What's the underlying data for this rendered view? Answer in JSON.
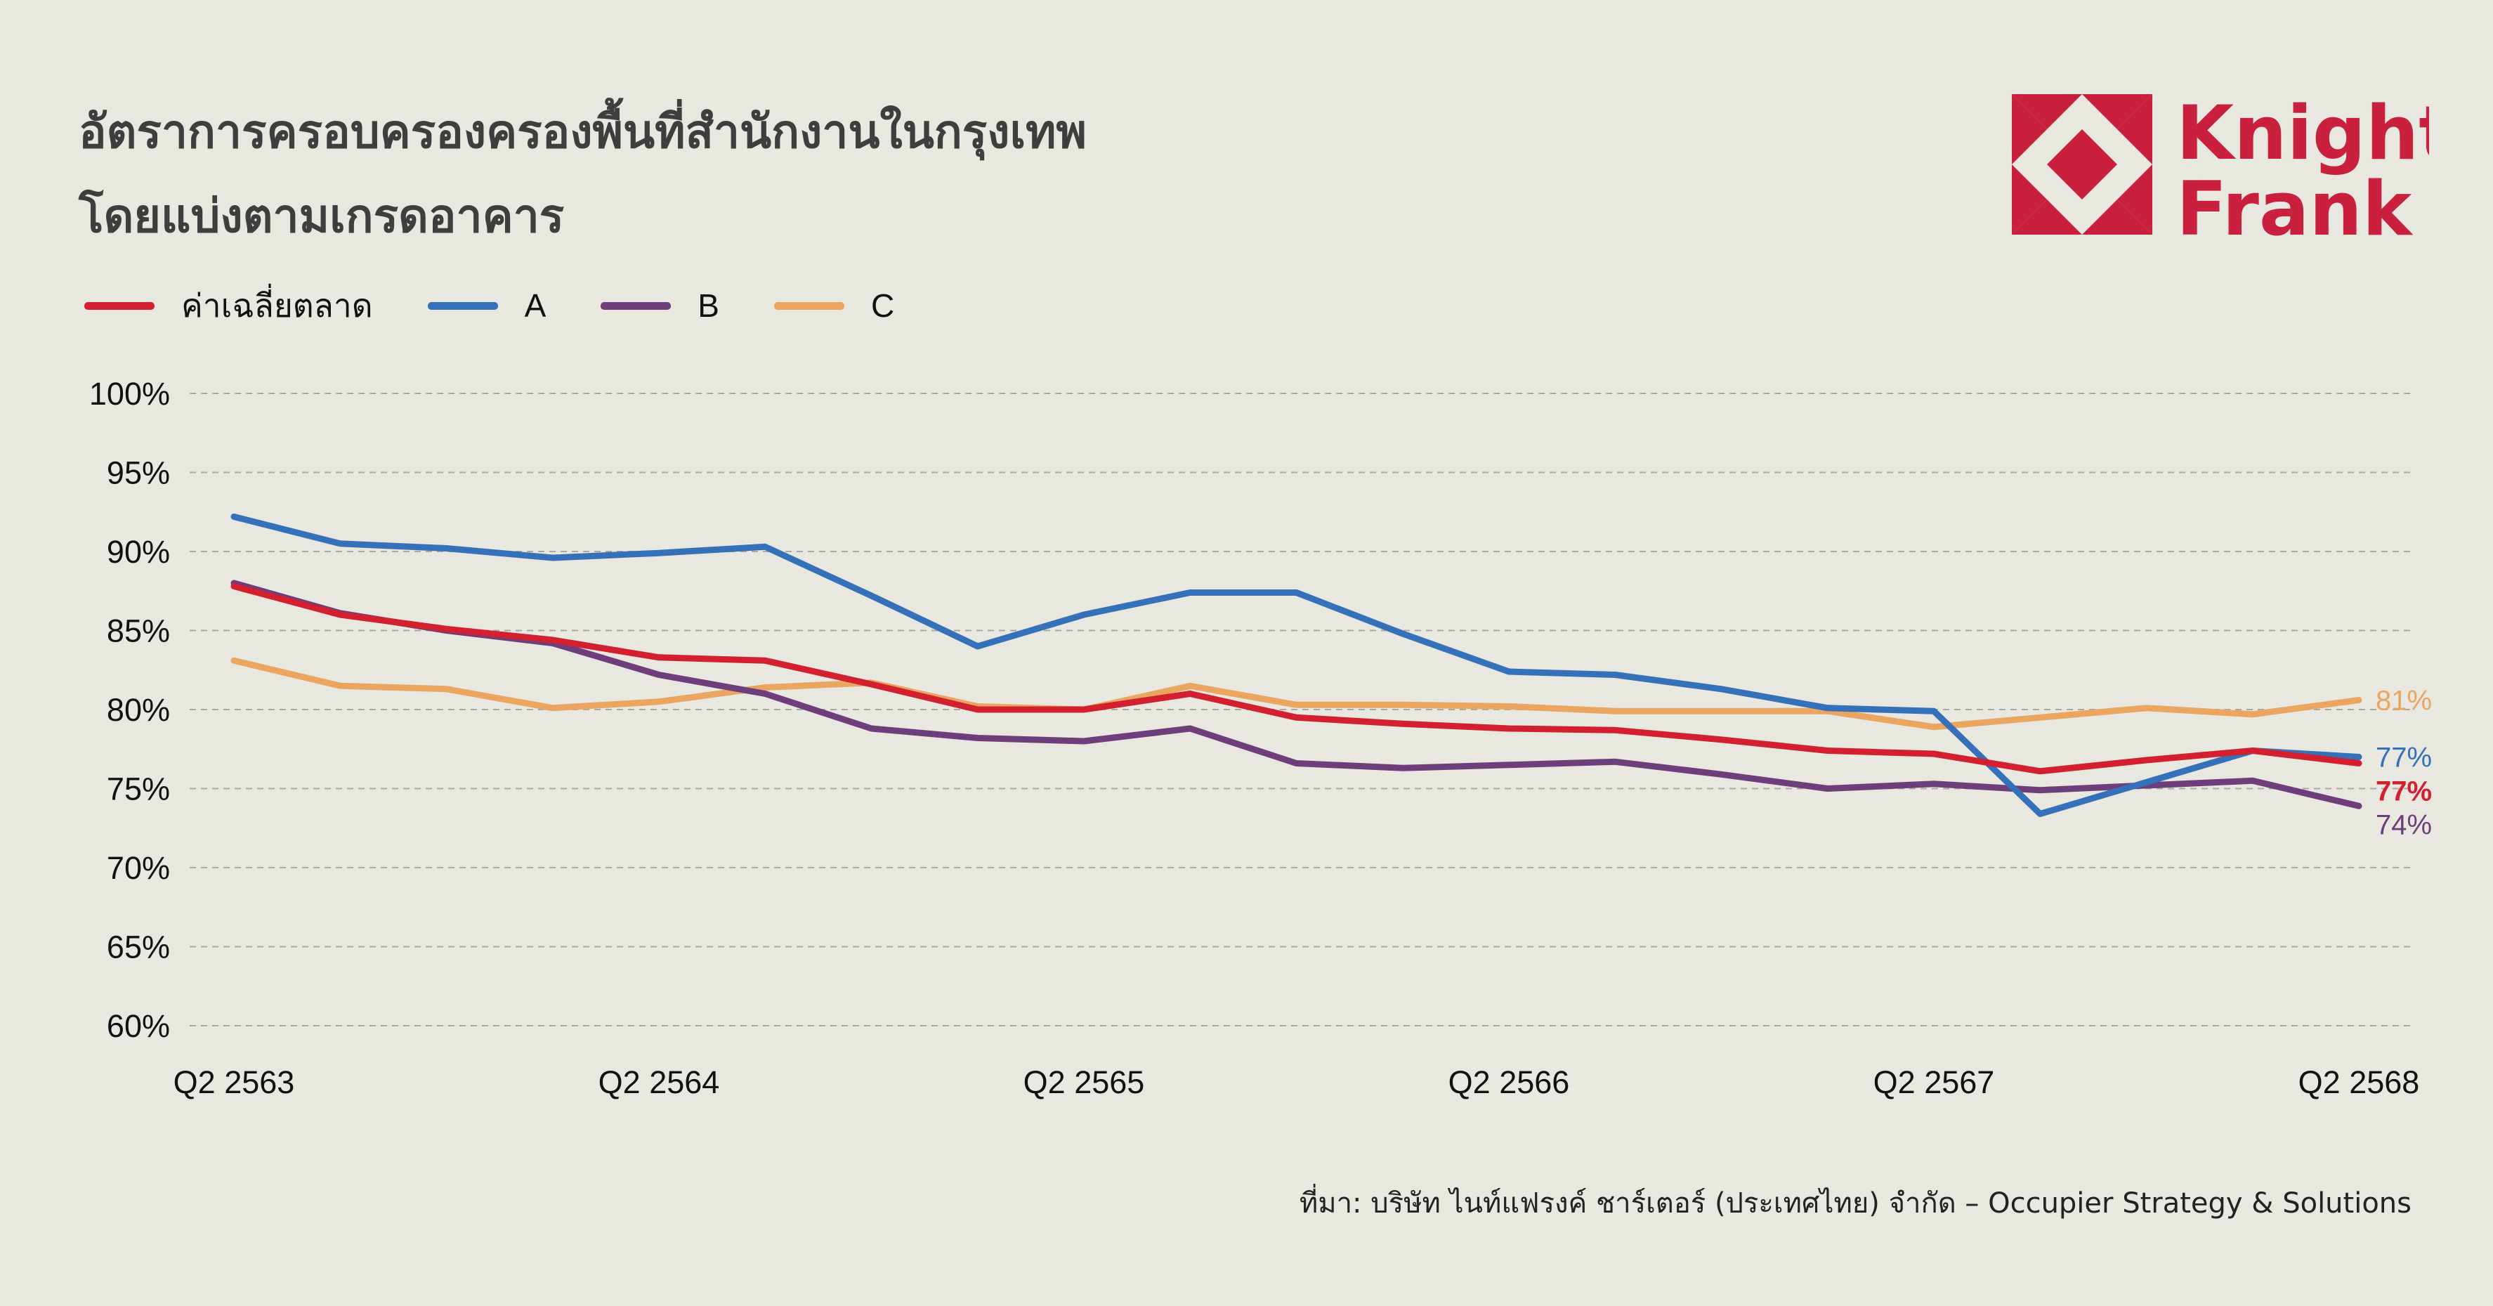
{
  "title": {
    "line1": "อัตราการครอบครองครองพื้นที่สำนักงานในกรุงเทพ",
    "line2": "โดยแบ่งตามเกรดอาคาร"
  },
  "logo": {
    "line1": "Knight",
    "line2": "Frank",
    "color": "#C8203D"
  },
  "source": "ที่มา: บริษัท ไนท์แฟรงค์ ชาร์เตอร์ (ประเทศไทย) จำกัด – Occupier Strategy & Solutions",
  "chart_data": {
    "type": "line",
    "x": [
      "Q2 2563",
      "Q3 2563",
      "Q4 2563",
      "Q1 2564",
      "Q2 2564",
      "Q3 2564",
      "Q4 2564",
      "Q1 2565",
      "Q2 2565",
      "Q3 2565",
      "Q4 2565",
      "Q1 2566",
      "Q2 2566",
      "Q3 2566",
      "Q4 2566",
      "Q1 2567",
      "Q2 2567",
      "Q3 2567",
      "Q4 2567",
      "Q1 2568",
      "Q2 2568"
    ],
    "x_tick_labels": [
      "Q2 2563",
      "Q2 2564",
      "Q2 2565",
      "Q2 2566",
      "Q2 2567",
      "Q2 2568"
    ],
    "y_tick_labels": [
      "60%",
      "65%",
      "70%",
      "75%",
      "80%",
      "85%",
      "90%",
      "95%",
      "100%"
    ],
    "ylim": [
      60,
      100
    ],
    "grid": true,
    "legend_position": "top-left",
    "series": [
      {
        "name": "ค่าเฉลี่ยตลาด",
        "color": "#D3202F",
        "end_label": "77%",
        "end_label_bold": true,
        "values": [
          87.8,
          86.0,
          85.1,
          84.4,
          83.3,
          83.1,
          81.6,
          80.0,
          80.0,
          81.0,
          79.5,
          79.1,
          78.8,
          78.7,
          78.1,
          77.4,
          77.2,
          76.1,
          76.8,
          77.4,
          76.6
        ]
      },
      {
        "name": "A",
        "color": "#3471B8",
        "end_label": "77%",
        "end_label_bold": false,
        "values": [
          92.2,
          90.5,
          90.2,
          89.6,
          89.9,
          90.3,
          87.2,
          84.0,
          86.0,
          87.4,
          87.4,
          84.8,
          82.4,
          82.2,
          81.3,
          80.1,
          79.9,
          73.4,
          75.4,
          77.4,
          77.0
        ]
      },
      {
        "name": "B",
        "color": "#6E3E7B",
        "end_label": "74%",
        "end_label_bold": false,
        "values": [
          88.0,
          86.1,
          85.0,
          84.2,
          82.2,
          81.0,
          78.8,
          78.2,
          78.0,
          78.8,
          76.6,
          76.3,
          76.5,
          76.7,
          75.9,
          75.0,
          75.3,
          74.9,
          75.2,
          75.5,
          73.9
        ]
      },
      {
        "name": "C",
        "color": "#EAA660",
        "end_label": "81%",
        "end_label_bold": false,
        "values": [
          83.1,
          81.5,
          81.3,
          80.1,
          80.5,
          81.4,
          81.7,
          80.2,
          80.0,
          81.5,
          80.3,
          80.3,
          80.2,
          79.9,
          79.9,
          79.9,
          78.9,
          79.5,
          80.1,
          79.7,
          80.6
        ]
      }
    ]
  }
}
